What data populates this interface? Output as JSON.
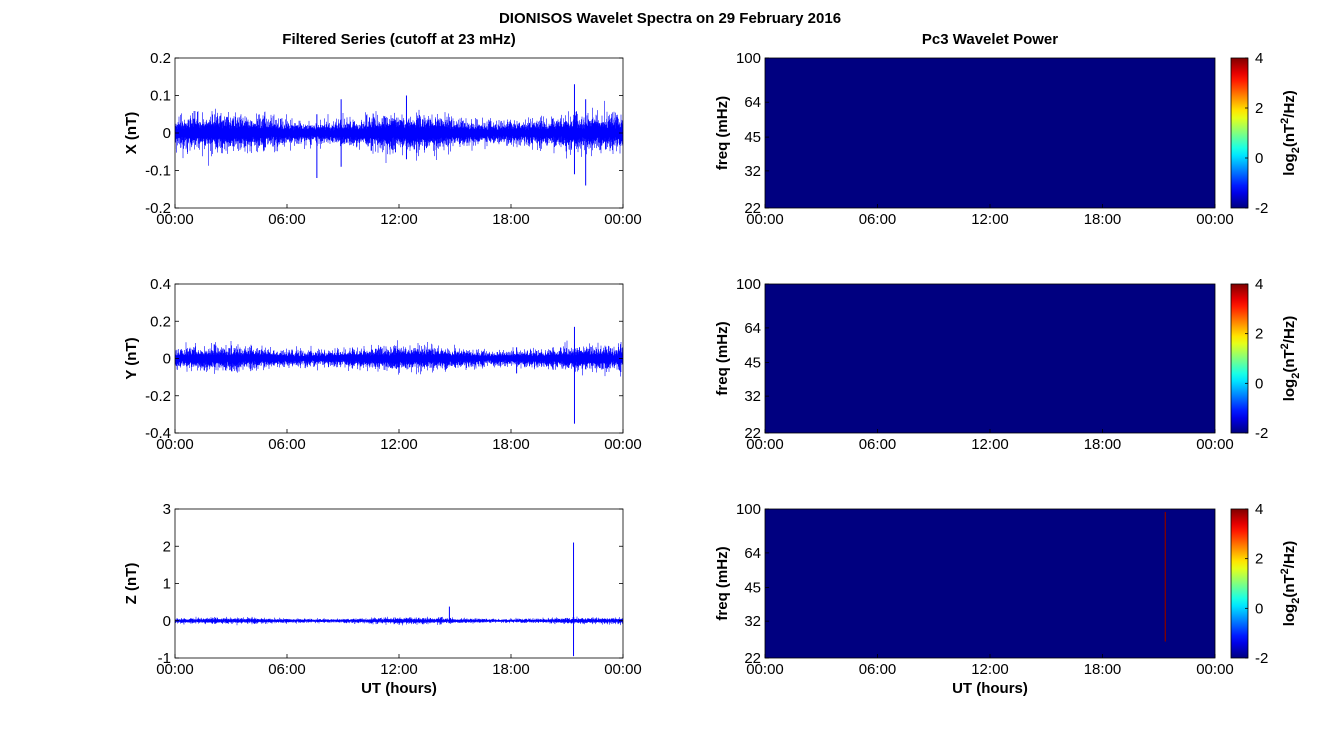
{
  "figure": {
    "suptitle": "DIONISOS Wavelet Spectra on 29 February 2016",
    "left_column_title": "Filtered Series (cutoff at 23 mHz)",
    "right_column_title": "Pc3 Wavelet Power",
    "shared_xlabel": "UT (hours)",
    "series_color": "#0000ff"
  },
  "chart_data": [
    {
      "type": "line",
      "component": "X",
      "title": "Filtered Series (cutoff at 23 mHz)",
      "xlabel": "",
      "ylabel": "X (nT)",
      "x_ticklabels": [
        "00:00",
        "06:00",
        "12:00",
        "18:00",
        "00:00"
      ],
      "xlim_hours": [
        0,
        24
      ],
      "ylim": [
        -0.2,
        0.2
      ],
      "y_ticklabels": [
        "0.2",
        "0.1",
        "0",
        "-0.1",
        "-0.2"
      ],
      "y_ticks": [
        0.2,
        0.1,
        0,
        -0.1,
        -0.2
      ],
      "noise_amplitude": 0.03,
      "spikes": [
        {
          "x_hour": 7.6,
          "min": -0.12,
          "max": 0.05
        },
        {
          "x_hour": 8.9,
          "min": -0.09,
          "max": 0.09
        },
        {
          "x_hour": 12.4,
          "min": -0.07,
          "max": 0.1
        },
        {
          "x_hour": 21.4,
          "min": -0.11,
          "max": 0.13
        },
        {
          "x_hour": 22.0,
          "min": -0.14,
          "max": 0.09
        }
      ],
      "series": [
        {
          "color": "#0000ff"
        }
      ]
    },
    {
      "type": "line",
      "component": "Y",
      "title": "",
      "xlabel": "",
      "ylabel": "Y (nT)",
      "x_ticklabels": [
        "00:00",
        "06:00",
        "12:00",
        "18:00",
        "00:00"
      ],
      "xlim_hours": [
        0,
        24
      ],
      "ylim": [
        -0.4,
        0.4
      ],
      "y_ticklabels": [
        "0.4",
        "0.2",
        "0",
        "-0.2",
        "-0.4"
      ],
      "y_ticks": [
        0.4,
        0.2,
        0,
        -0.2,
        -0.4
      ],
      "noise_amplitude": 0.04,
      "spikes": [
        {
          "x_hour": 21.4,
          "min": -0.35,
          "max": 0.17
        },
        {
          "x_hour": 18.3,
          "min": -0.08,
          "max": 0.06
        }
      ],
      "series": [
        {
          "color": "#0000ff"
        }
      ]
    },
    {
      "type": "line",
      "component": "Z",
      "title": "",
      "xlabel": "UT (hours)",
      "ylabel": "Z (nT)",
      "x_ticklabels": [
        "00:00",
        "06:00",
        "12:00",
        "18:00",
        "00:00"
      ],
      "xlim_hours": [
        0,
        24
      ],
      "ylim": [
        -1,
        3
      ],
      "y_ticklabels": [
        "3",
        "2",
        "1",
        "0",
        "-1"
      ],
      "y_ticks": [
        3,
        2,
        1,
        0,
        -1
      ],
      "noise_amplitude": 0.05,
      "spikes": [
        {
          "x_hour": 14.7,
          "min": -0.05,
          "max": 0.38
        },
        {
          "x_hour": 21.35,
          "min": -0.95,
          "max": 2.1
        }
      ],
      "series": [
        {
          "color": "#0000ff"
        }
      ]
    },
    {
      "type": "heatmap",
      "component": "X",
      "title": "Pc3 Wavelet Power",
      "xlabel": "",
      "ylabel": "freq (mHz)",
      "x_ticklabels": [
        "00:00",
        "06:00",
        "12:00",
        "18:00",
        "00:00"
      ],
      "y_ticklabels": [
        "100",
        "64",
        "45",
        "32",
        "22"
      ],
      "y_ticks": [
        100,
        64,
        45,
        32,
        22
      ],
      "ylim": [
        22,
        100
      ],
      "y_scale": "log",
      "background_value": -2,
      "colorbar": {
        "label_base": "log",
        "label_sub": "2",
        "label_open": "(nT",
        "label_sup": "2",
        "label_close": "/Hz)",
        "ticklabels": [
          "4",
          "2",
          "0",
          "-2"
        ],
        "ticks": [
          4,
          2,
          0,
          -2
        ],
        "range": [
          -2,
          4
        ],
        "colormap": "jet"
      },
      "features": []
    },
    {
      "type": "heatmap",
      "component": "Y",
      "title": "",
      "xlabel": "",
      "ylabel": "freq (mHz)",
      "x_ticklabels": [
        "00:00",
        "06:00",
        "12:00",
        "18:00",
        "00:00"
      ],
      "y_ticklabels": [
        "100",
        "64",
        "45",
        "32",
        "22"
      ],
      "y_ticks": [
        100,
        64,
        45,
        32,
        22
      ],
      "ylim": [
        22,
        100
      ],
      "y_scale": "log",
      "background_value": -2,
      "colorbar": {
        "label_base": "log",
        "label_sub": "2",
        "label_open": "(nT",
        "label_sup": "2",
        "label_close": "/Hz)",
        "ticklabels": [
          "4",
          "2",
          "0",
          "-2"
        ],
        "ticks": [
          4,
          2,
          0,
          -2
        ],
        "range": [
          -2,
          4
        ],
        "colormap": "jet"
      },
      "features": []
    },
    {
      "type": "heatmap",
      "component": "Z",
      "title": "",
      "xlabel": "UT (hours)",
      "ylabel": "freq (mHz)",
      "x_ticklabels": [
        "00:00",
        "06:00",
        "12:00",
        "18:00",
        "00:00"
      ],
      "y_ticklabels": [
        "100",
        "64",
        "45",
        "32",
        "22"
      ],
      "y_ticks": [
        100,
        64,
        45,
        32,
        22
      ],
      "ylim": [
        22,
        100
      ],
      "y_scale": "log",
      "background_value": -2,
      "colorbar": {
        "label_base": "log",
        "label_sub": "2",
        "label_open": "(nT",
        "label_sup": "2",
        "label_close": "/Hz)",
        "ticklabels": [
          "4",
          "2",
          "0",
          "-2"
        ],
        "ticks": [
          4,
          2,
          0,
          -2
        ],
        "range": [
          -2,
          4
        ],
        "colormap": "jet"
      },
      "features": [
        {
          "x_hour": 21.35,
          "freq_low": 26,
          "freq_high": 97,
          "value": 4
        }
      ]
    }
  ]
}
